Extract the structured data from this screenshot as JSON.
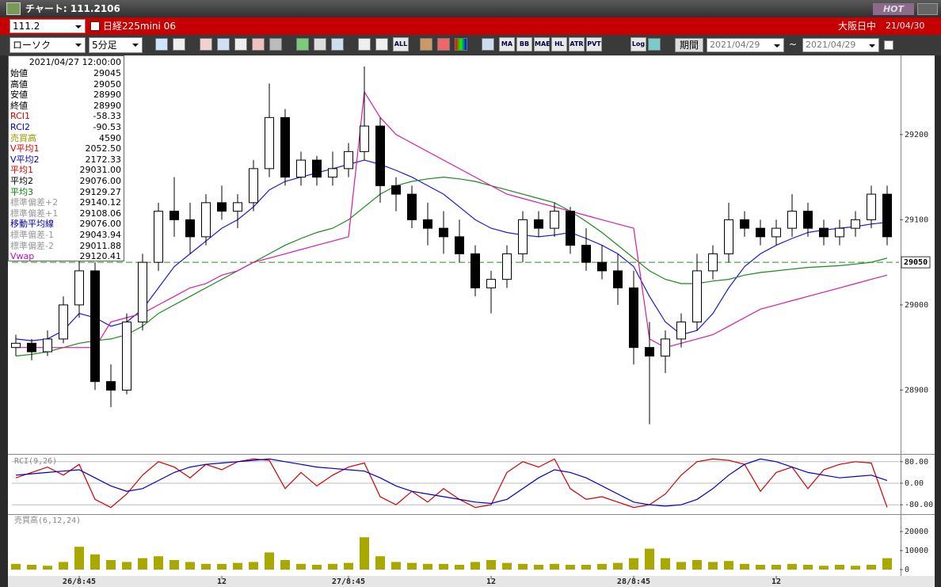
{
  "window": {
    "title": "チャート: 111.2106",
    "hot": "HOT"
  },
  "header": {
    "code": "111.2",
    "name": "日経225mini 06",
    "session": "大阪日中",
    "date": "21/04/30"
  },
  "toolbar": {
    "chart_kind": "ローソク",
    "interval": "5分足",
    "buttons": [
      "ALL",
      "MA",
      "BB",
      "MAE",
      "HL",
      "ATR",
      "PVT",
      "Log"
    ],
    "period": "期間",
    "from": "2021/04/29",
    "separator": "~",
    "to": "2021/04/29"
  },
  "info_panel": {
    "time": "2021/04/27 12:00:00",
    "rows": [
      [
        "始値",
        "29045",
        "#000"
      ],
      [
        "高値",
        "29050",
        "#000"
      ],
      [
        "安値",
        "28990",
        "#000"
      ],
      [
        "終値",
        "28990",
        "#000"
      ],
      [
        "RCI1",
        "-58.33",
        "#d00000"
      ],
      [
        "RCI2",
        "-90.53",
        "#0000c0"
      ],
      [
        "売買高",
        "4590",
        "#999900"
      ],
      [
        "V平均1",
        "2052.50",
        "#d00000"
      ],
      [
        "V平均2",
        "2172.33",
        "#0000c0"
      ],
      [
        "平均1",
        "29031.00",
        "#d00000"
      ],
      [
        "平均2",
        "29076.00",
        "#000"
      ],
      [
        "平均3",
        "29129.27",
        "#008000"
      ],
      [
        "標準偏差+2",
        "29140.12",
        "#999"
      ],
      [
        "標準偏差+1",
        "29108.06",
        "#999"
      ],
      [
        "移動平均線",
        "29076.00",
        "#0000c0"
      ],
      [
        "標準偏差-1",
        "29043.94",
        "#999"
      ],
      [
        "標準偏差-2",
        "29011.88",
        "#999"
      ],
      [
        "Vwap",
        "29120.41",
        "#d000d0"
      ]
    ]
  },
  "chart_data": [
    {
      "type": "candlestick",
      "xlim": [
        -0.25,
        55.75
      ],
      "ylim": [
        28826,
        29291
      ],
      "yticks": [
        28900,
        29000,
        29100,
        29200
      ],
      "price_line": 29050,
      "price_line_color": "#2a8a2a",
      "open": [
        28950,
        28955,
        28945,
        28960,
        29000,
        29040,
        28910,
        28900,
        28980,
        29050,
        29110,
        29100,
        29080,
        29120,
        29110,
        29120,
        29160,
        29220,
        29150,
        29170,
        29150,
        29160,
        29180,
        29210,
        29140,
        29130,
        29100,
        29090,
        29080,
        29060,
        29020,
        29030,
        29060,
        29100,
        29090,
        29110,
        29070,
        29050,
        29040,
        29020,
        28950,
        28940,
        28960,
        28980,
        29040,
        29060,
        29100,
        29090,
        29080,
        29090,
        29110,
        29090,
        29080,
        29090,
        29100,
        29130
      ],
      "high": [
        28965,
        28960,
        28970,
        29010,
        29060,
        29050,
        28930,
        28990,
        29060,
        29120,
        29150,
        29120,
        29130,
        29140,
        29130,
        29170,
        29260,
        29230,
        29180,
        29175,
        29180,
        29190,
        29280,
        29220,
        29150,
        29140,
        29120,
        29110,
        29100,
        29070,
        29040,
        29070,
        29110,
        29110,
        29120,
        29115,
        29090,
        29070,
        29060,
        29040,
        28980,
        28970,
        28990,
        29060,
        29070,
        29120,
        29110,
        29100,
        29100,
        29130,
        29120,
        29100,
        29100,
        29110,
        29140,
        29140
      ],
      "low": [
        28940,
        28935,
        28940,
        28955,
        28985,
        28900,
        28880,
        28895,
        28970,
        29040,
        29080,
        29060,
        29070,
        29100,
        29090,
        29110,
        29150,
        29140,
        29140,
        29140,
        29140,
        29150,
        29170,
        29120,
        29110,
        29090,
        29070,
        29060,
        29050,
        29010,
        28990,
        29020,
        29050,
        29080,
        29080,
        29060,
        29040,
        29030,
        29000,
        28930,
        28860,
        28920,
        28950,
        28970,
        29030,
        29050,
        29080,
        29070,
        29070,
        29080,
        29080,
        29070,
        29070,
        29080,
        29090,
        29070
      ],
      "close": [
        28955,
        28945,
        28960,
        29000,
        29040,
        28910,
        28900,
        28980,
        29050,
        29110,
        29100,
        29080,
        29120,
        29110,
        29120,
        29160,
        29220,
        29150,
        29170,
        29150,
        29160,
        29180,
        29210,
        29140,
        29130,
        29100,
        29090,
        29080,
        29060,
        29020,
        29030,
        29060,
        29100,
        29090,
        29110,
        29070,
        29050,
        29040,
        29020,
        28950,
        28940,
        28960,
        28980,
        29040,
        29060,
        29100,
        29090,
        29080,
        29090,
        29110,
        29090,
        29080,
        29090,
        29100,
        29130,
        29080
      ],
      "series": [
        {
          "name": "平均2",
          "color": "#1c1cd0",
          "values": [
            28960,
            28958,
            28960,
            28970,
            28990,
            28985,
            28975,
            28980,
            28995,
            29020,
            29045,
            29060,
            29075,
            29090,
            29100,
            29115,
            29135,
            29145,
            29150,
            29155,
            29160,
            29165,
            29170,
            29165,
            29158,
            29150,
            29140,
            29130,
            29115,
            29100,
            29090,
            29085,
            29082,
            29080,
            29082,
            29085,
            29078,
            29070,
            29060,
            29045,
            29010,
            28980,
            28965,
            28970,
            28990,
            29020,
            29045,
            29060,
            29070,
            29078,
            29085,
            29088,
            29090,
            29092,
            29095,
            29097
          ]
        },
        {
          "name": "平均3",
          "color": "#1a8a1a",
          "values": [
            28940,
            28942,
            28945,
            28950,
            28955,
            28958,
            28960,
            28965,
            28975,
            28990,
            29000,
            29010,
            29020,
            29030,
            29040,
            29050,
            29060,
            29070,
            29078,
            29085,
            29090,
            29100,
            29115,
            29130,
            29140,
            29145,
            29148,
            29150,
            29148,
            29145,
            29140,
            29135,
            29130,
            29125,
            29120,
            29110,
            29098,
            29085,
            29070,
            29055,
            29040,
            29030,
            29025,
            29025,
            29028,
            29030,
            29035,
            29038,
            29040,
            29042,
            29044,
            29045,
            29046,
            29048,
            29050,
            29055
          ]
        },
        {
          "name": "Vwap",
          "color": "#d81aa8",
          "values": [
            28950,
            28950,
            28950,
            28950,
            28950,
            28950,
            28980,
            28985,
            28990,
            29000,
            29010,
            29020,
            29025,
            29035,
            29040,
            29050,
            29055,
            29060,
            29065,
            29070,
            29075,
            29080,
            29250,
            29220,
            29200,
            29190,
            29180,
            29170,
            29160,
            29150,
            29140,
            29130,
            29125,
            29120,
            29115,
            29110,
            29105,
            29100,
            29095,
            29090,
            28960,
            28950,
            28955,
            28960,
            28965,
            28975,
            28985,
            28995,
            29000,
            29005,
            29010,
            29015,
            29020,
            29025,
            29030,
            29035
          ]
        }
      ]
    },
    {
      "type": "line",
      "title": "RCI(9,26)",
      "xlim": [
        -0.25,
        55.75
      ],
      "ylim": [
        -100,
        100
      ],
      "grid": true,
      "yticks": [
        {
          "value": 80,
          "label": "80.00"
        },
        {
          "value": 0,
          "label": "0.00"
        },
        {
          "value": -80,
          "label": "-80.00"
        }
      ],
      "series": [
        {
          "name": "RCI1",
          "color": "#d00000",
          "values": [
            20,
            40,
            60,
            30,
            70,
            -60,
            -90,
            -40,
            30,
            80,
            60,
            20,
            70,
            50,
            80,
            90,
            85,
            -20,
            40,
            -10,
            30,
            60,
            75,
            -50,
            -80,
            -30,
            -70,
            -20,
            -60,
            -90,
            -80,
            40,
            80,
            60,
            90,
            -20,
            -60,
            -50,
            -70,
            -90,
            -80,
            -40,
            30,
            80,
            90,
            85,
            70,
            -30,
            40,
            60,
            -20,
            50,
            70,
            80,
            75,
            -90
          ]
        },
        {
          "name": "RCI2",
          "color": "#0000c0",
          "values": [
            30,
            35,
            40,
            45,
            50,
            20,
            -10,
            -30,
            -20,
            10,
            40,
            60,
            70,
            75,
            80,
            85,
            90,
            80,
            70,
            60,
            55,
            50,
            45,
            20,
            -10,
            -30,
            -40,
            -50,
            -60,
            -70,
            -75,
            -60,
            -20,
            20,
            50,
            40,
            20,
            -10,
            -40,
            -70,
            -80,
            -85,
            -80,
            -60,
            -20,
            30,
            70,
            90,
            80,
            60,
            40,
            30,
            20,
            25,
            30,
            10
          ]
        }
      ]
    },
    {
      "type": "bar",
      "title": "売買高(6,12,24)",
      "color": "#a8a800",
      "xlim": [
        -0.25,
        55.75
      ],
      "ylim": [
        0,
        28333
      ],
      "yticks": [
        0,
        10000,
        20000
      ],
      "xticks": [
        {
          "value": 4,
          "label": "26/8:45"
        },
        {
          "value": 13,
          "label": "12"
        },
        {
          "value": 21,
          "label": "27/8:45"
        },
        {
          "value": 30,
          "label": "12"
        },
        {
          "value": 39,
          "label": "28/8:45"
        },
        {
          "value": 48,
          "label": "12"
        }
      ],
      "values": [
        3000,
        2500,
        2000,
        4000,
        12000,
        8000,
        5000,
        4000,
        6000,
        7000,
        5000,
        4000,
        3000,
        3000,
        3500,
        4000,
        9000,
        5000,
        3000,
        2500,
        3000,
        3500,
        17000,
        7000,
        4000,
        3500,
        3000,
        3000,
        2500,
        4000,
        5000,
        3500,
        3000,
        2500,
        3000,
        2500,
        2500,
        3000,
        3500,
        6000,
        11000,
        6000,
        4000,
        5000,
        4000,
        4500,
        3000,
        2500,
        2500,
        3000,
        2500,
        2000,
        2500,
        2000,
        2500,
        6000
      ]
    }
  ]
}
